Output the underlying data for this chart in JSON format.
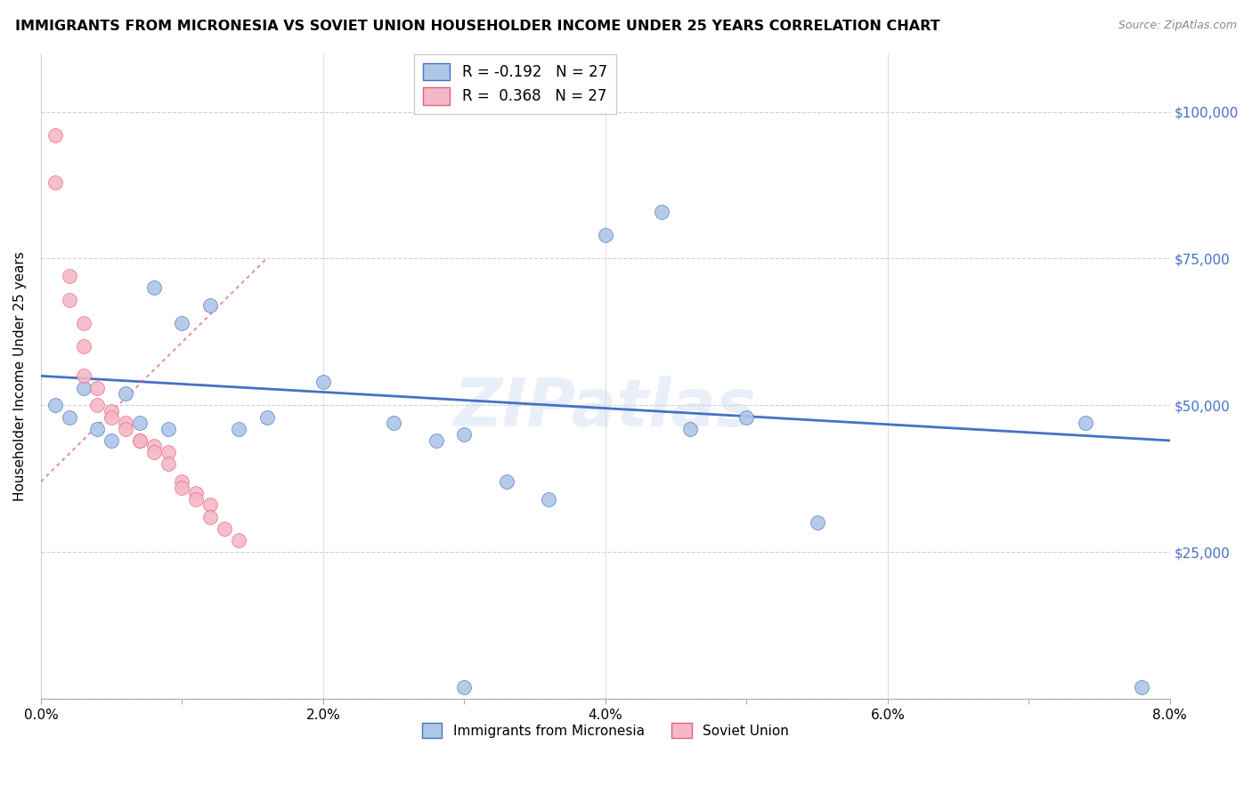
{
  "title": "IMMIGRANTS FROM MICRONESIA VS SOVIET UNION HOUSEHOLDER INCOME UNDER 25 YEARS CORRELATION CHART",
  "source": "Source: ZipAtlas.com",
  "ylabel": "Householder Income Under 25 years",
  "xlim": [
    0.0,
    0.08
  ],
  "ylim": [
    0,
    110000
  ],
  "yticks": [
    0,
    25000,
    50000,
    75000,
    100000
  ],
  "ytick_labels": [
    "",
    "$25,000",
    "$50,000",
    "$75,000",
    "$100,000"
  ],
  "xtick_positions": [
    0.0,
    0.01,
    0.02,
    0.03,
    0.04,
    0.05,
    0.06,
    0.07,
    0.08
  ],
  "xtick_labels": [
    "0.0%",
    "",
    "2.0%",
    "",
    "4.0%",
    "",
    "6.0%",
    "",
    "8.0%"
  ],
  "watermark": "ZIPatlas",
  "legend_r_micronesia": "-0.192",
  "legend_n_micronesia": "27",
  "legend_r_soviet": "0.368",
  "legend_n_soviet": "27",
  "color_micronesia": "#aec6e8",
  "color_soviet": "#f4b8c8",
  "color_line_micronesia": "#4472c4",
  "color_line_soviet": "#e8607a",
  "color_axis_labels": "#4472c4",
  "micronesia_x": [
    0.001,
    0.002,
    0.003,
    0.004,
    0.005,
    0.006,
    0.007,
    0.008,
    0.009,
    0.01,
    0.012,
    0.014,
    0.016,
    0.02,
    0.025,
    0.028,
    0.03,
    0.033,
    0.036,
    0.04,
    0.044,
    0.046,
    0.05,
    0.055,
    0.03,
    0.074,
    0.078
  ],
  "micronesia_y": [
    50000,
    48000,
    53000,
    46000,
    44000,
    52000,
    47000,
    70000,
    46000,
    64000,
    67000,
    46000,
    48000,
    54000,
    47000,
    44000,
    45000,
    37000,
    34000,
    79000,
    83000,
    46000,
    48000,
    30000,
    2000,
    47000,
    2000
  ],
  "soviet_x": [
    0.001,
    0.001,
    0.002,
    0.002,
    0.003,
    0.003,
    0.003,
    0.004,
    0.004,
    0.005,
    0.005,
    0.006,
    0.006,
    0.007,
    0.007,
    0.008,
    0.008,
    0.009,
    0.009,
    0.01,
    0.01,
    0.011,
    0.011,
    0.012,
    0.012,
    0.013,
    0.014
  ],
  "soviet_y": [
    96000,
    88000,
    72000,
    68000,
    64000,
    60000,
    55000,
    53000,
    50000,
    49000,
    48000,
    47000,
    46000,
    44000,
    44000,
    43000,
    42000,
    42000,
    40000,
    37000,
    36000,
    35000,
    34000,
    33000,
    31000,
    29000,
    27000
  ],
  "micronesia_trend_x": [
    0.0,
    0.08
  ],
  "micronesia_trend_y": [
    55000,
    44000
  ],
  "soviet_trend_x": [
    0.0,
    0.016
  ],
  "soviet_trend_y": [
    37000,
    75000
  ]
}
